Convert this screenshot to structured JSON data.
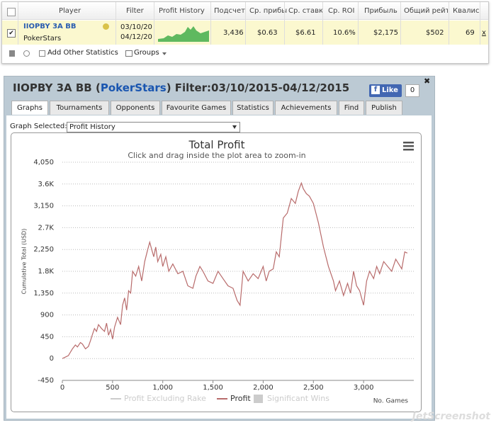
{
  "table": {
    "headers": [
      "Player",
      "Filter",
      "Profit History",
      "Подсчет",
      "Ср. прибы",
      "Ср. ставк",
      "Ср. ROI",
      "Прибыль",
      "Общий рейт",
      "Квалис"
    ],
    "row": {
      "player": "IIOPBY 3A BB",
      "site": "PokerStars",
      "filter_from": "03/10/20",
      "filter_to": "04/12/20",
      "count": "3,436",
      "avg_profit": "$0.63",
      "avg_stake": "$6.61",
      "roi": "10.6%",
      "profit": "$2,175",
      "rating": "$502",
      "qual": "69",
      "close": "x"
    }
  },
  "toolbar": {
    "add": "Add Other Statistics",
    "groups": "Groups"
  },
  "panel": {
    "title_player": "IIOPBY 3A BB (",
    "title_site": "PokerStars",
    "title_filter": ") Filter:03/10/2015-04/12/2015",
    "like": "Like",
    "like_count": "0",
    "tabs": [
      "Graphs",
      "Tournaments",
      "Opponents",
      "Favourite Games",
      "Statistics",
      "Achievements",
      "Find",
      "Publish"
    ],
    "graph_selected_label": "Graph Selected:",
    "graph_selected": "Profit History"
  },
  "watermark": "JetScreenshot",
  "chart_data": {
    "type": "line",
    "title": "Total Profit",
    "subtitle": "Click and drag inside the plot area to zoom-in",
    "y_label": "Cumulative Total (USD)",
    "x_label": "No. Games",
    "xlim": [
      0,
      3500
    ],
    "ylim": [
      -450,
      4050
    ],
    "xticks": [
      0,
      500,
      {
        "value": 1000,
        "label": "1,000"
      },
      {
        "value": 1500,
        "label": "1,500"
      },
      {
        "value": 2000,
        "label": "2,000"
      },
      {
        "value": 2500,
        "label": "2,500"
      },
      {
        "value": 3000,
        "label": "3,000"
      }
    ],
    "yticks": [
      -450,
      0,
      450,
      900,
      {
        "value": 1350,
        "label": "1,350"
      },
      {
        "value": 1800,
        "label": "1.8K"
      },
      {
        "value": 2250,
        "label": "2,250"
      },
      {
        "value": 2700,
        "label": "2.7K"
      },
      {
        "value": 3150,
        "label": "3,150"
      },
      {
        "value": 3600,
        "label": "3.6K"
      },
      {
        "value": 4050,
        "label": "4,050"
      }
    ],
    "grid": true,
    "x": [
      0,
      60,
      100,
      130,
      150,
      180,
      200,
      230,
      260,
      280,
      300,
      320,
      340,
      360,
      390,
      420,
      440,
      460,
      480,
      500,
      520,
      550,
      580,
      600,
      620,
      640,
      660,
      680,
      700,
      730,
      760,
      790,
      820,
      850,
      870,
      890,
      910,
      930,
      950,
      980,
      1000,
      1030,
      1060,
      1100,
      1150,
      1200,
      1250,
      1300,
      1330,
      1370,
      1400,
      1450,
      1500,
      1550,
      1600,
      1650,
      1700,
      1740,
      1770,
      1800,
      1850,
      1900,
      1950,
      2000,
      2030,
      2060,
      2100,
      2130,
      2160,
      2200,
      2240,
      2280,
      2320,
      2350,
      2380,
      2400,
      2430,
      2460,
      2500,
      2550,
      2600,
      2650,
      2700,
      2720,
      2760,
      2800,
      2840,
      2870,
      2900,
      2930,
      2960,
      3000,
      3030,
      3060,
      3100,
      3130,
      3160,
      3200,
      3240,
      3280,
      3320,
      3350,
      3380,
      3410,
      3436
    ],
    "series": [
      {
        "name": "Profit",
        "color": "#b86b6b",
        "values": [
          0,
          60,
          200,
          280,
          240,
          330,
          300,
          200,
          250,
          370,
          500,
          620,
          560,
          700,
          620,
          560,
          730,
          480,
          600,
          400,
          650,
          850,
          700,
          1100,
          1250,
          1000,
          1400,
          1350,
          1800,
          1700,
          1900,
          1600,
          2000,
          2250,
          2400,
          2250,
          2100,
          2300,
          2000,
          2150,
          1900,
          2100,
          1800,
          1950,
          1750,
          1800,
          1500,
          1450,
          1700,
          1900,
          1800,
          1600,
          1550,
          1800,
          1650,
          1500,
          1450,
          1200,
          1100,
          1800,
          1600,
          1750,
          1650,
          1900,
          1600,
          1800,
          1850,
          2200,
          2100,
          2900,
          3000,
          3300,
          3200,
          3450,
          3620,
          3500,
          3400,
          3350,
          3200,
          2800,
          2300,
          1900,
          1600,
          1400,
          1600,
          1300,
          1550,
          1350,
          1800,
          1500,
          1400,
          1100,
          1600,
          1800,
          1650,
          1900,
          1750,
          2000,
          1900,
          1800,
          2050,
          1950,
          1850,
          2200,
          2175
        ]
      }
    ],
    "hidden_series": [
      {
        "name": "Profit Excluding Rake",
        "color": "#cccccc"
      },
      {
        "name": "Significant Wins",
        "color": "#cccccc"
      }
    ]
  }
}
